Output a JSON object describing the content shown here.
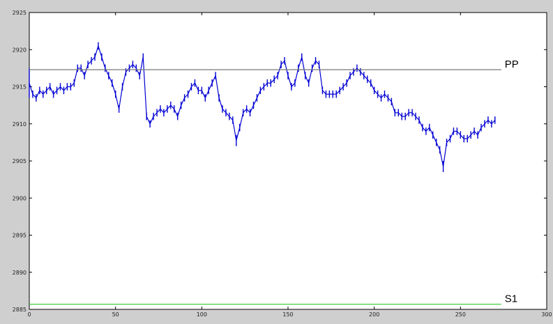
{
  "chart_data": {
    "type": "line",
    "title": "",
    "xlabel": "",
    "ylabel": "",
    "xlim": [
      0,
      300
    ],
    "ylim": [
      2885,
      2925
    ],
    "x_ticks": [
      0,
      50,
      100,
      150,
      200,
      250,
      300
    ],
    "x_tick_labels": [
      "0",
      "50",
      "100",
      "150",
      "200",
      "250",
      "300"
    ],
    "y_ticks": [
      2885,
      2890,
      2895,
      2900,
      2905,
      2910,
      2915,
      2920,
      2925
    ],
    "y_tick_labels": [
      "2885",
      "2890",
      "2895",
      "2900",
      "2905",
      "2910",
      "2915",
      "2920",
      "2925"
    ],
    "grid": false,
    "series": [
      {
        "name": "",
        "style": "high-low bars",
        "color": "#0000d4",
        "x": [
          0,
          2,
          4,
          6,
          8,
          10,
          12,
          14,
          16,
          18,
          20,
          22,
          24,
          26,
          28,
          30,
          32,
          34,
          36,
          38,
          40,
          42,
          44,
          46,
          48,
          50,
          52,
          54,
          56,
          58,
          60,
          62,
          64,
          66,
          68,
          70,
          72,
          74,
          76,
          78,
          80,
          82,
          84,
          86,
          88,
          90,
          92,
          94,
          96,
          98,
          100,
          102,
          104,
          106,
          108,
          110,
          112,
          114,
          116,
          118,
          120,
          122,
          124,
          126,
          128,
          130,
          132,
          134,
          136,
          138,
          140,
          142,
          144,
          146,
          148,
          150,
          152,
          154,
          156,
          158,
          160,
          162,
          164,
          166,
          168,
          170,
          172,
          174,
          176,
          178,
          180,
          182,
          184,
          186,
          188,
          190,
          192,
          194,
          196,
          198,
          200,
          202,
          204,
          206,
          208,
          210,
          212,
          214,
          216,
          218,
          220,
          222,
          224,
          226,
          228,
          230,
          232,
          234,
          236,
          238,
          240,
          242,
          244,
          246,
          248,
          250,
          252,
          254,
          256,
          258,
          260,
          262,
          264,
          266,
          268,
          270
        ],
        "values": [
          2917.5,
          2914.5,
          2914,
          2915,
          2914.5,
          2915,
          2915.5,
          2914.5,
          2915,
          2915.5,
          2915,
          2915.5,
          2915.5,
          2916,
          2918,
          2918,
          2917,
          2918.5,
          2919,
          2919.5,
          2921,
          2919.5,
          2918,
          2917,
          2916,
          2914.5,
          2912.5,
          2915.5,
          2917.5,
          2918,
          2918.5,
          2918,
          2917,
          2919.5,
          2911.5,
          2910.5,
          2911.5,
          2912,
          2912.5,
          2912,
          2912.5,
          2913,
          2912.5,
          2911.5,
          2913,
          2914,
          2914.5,
          2915.5,
          2916,
          2915,
          2915,
          2914,
          2915,
          2916,
          2917,
          2914,
          2912.5,
          2912,
          2911.5,
          2911,
          2908.5,
          2910,
          2912,
          2912.5,
          2912,
          2913,
          2914,
          2915,
          2915.5,
          2916,
          2916,
          2916.5,
          2917,
          2918.5,
          2919,
          2917,
          2915.5,
          2916,
          2918,
          2919.5,
          2917,
          2916,
          2918,
          2919,
          2918.5,
          2915,
          2914.5,
          2914.5,
          2914.5,
          2914.5,
          2915,
          2915.5,
          2916,
          2917,
          2917.5,
          2918,
          2917.5,
          2917,
          2916.5,
          2916,
          2915,
          2914.5,
          2914,
          2914.5,
          2914,
          2913.5,
          2912,
          2912,
          2911.5,
          2911.5,
          2912,
          2912,
          2911.5,
          2911,
          2910,
          2909.5,
          2910,
          2909,
          2908,
          2907,
          2905,
          2908,
          2908.5,
          2909.5,
          2909.5,
          2909,
          2908.5,
          2908.5,
          2909,
          2909.5,
          2909,
          2910,
          2910.5,
          2911,
          2910.5,
          2911
        ],
        "note_ranges_low": [
          2913.5,
          2913.5,
          2913,
          2914,
          2913.5,
          2914,
          2914.5,
          2913.5,
          2914,
          2914.5,
          2914,
          2914.5,
          2914.5,
          2915,
          2917,
          2917,
          2916,
          2917.5,
          2918,
          2918.5,
          2920,
          2918.5,
          2917,
          2916,
          2915,
          2913.5,
          2911.5,
          2914.5,
          2916.5,
          2917,
          2917.5,
          2917,
          2916,
          2918.5,
          2910.5,
          2909.5,
          2910.5,
          2911,
          2911.5,
          2911,
          2911.5,
          2912,
          2911.5,
          2910.5,
          2912,
          2913,
          2913.5,
          2914.5,
          2915,
          2914,
          2914,
          2913,
          2914,
          2915,
          2916,
          2913,
          2911.5,
          2911,
          2910.5,
          2910,
          2907,
          2909,
          2911,
          2911.5,
          2911,
          2912,
          2913,
          2914,
          2914.5,
          2915,
          2915,
          2915.5,
          2916,
          2917.5,
          2918,
          2916,
          2914.5,
          2915,
          2917,
          2918.5,
          2916,
          2915,
          2917,
          2918,
          2917.5,
          2914,
          2913.5,
          2913.5,
          2913.5,
          2913.5,
          2914,
          2914.5,
          2915,
          2916,
          2916.5,
          2917,
          2916.5,
          2916,
          2915.5,
          2915,
          2914,
          2913.5,
          2913,
          2913.5,
          2913,
          2912.5,
          2911,
          2911,
          2910.5,
          2910.5,
          2911,
          2911,
          2910.5,
          2910,
          2909,
          2908.5,
          2909,
          2908,
          2907,
          2906,
          2903.5,
          2907,
          2907.5,
          2908.5,
          2908.5,
          2908,
          2907.5,
          2907.5,
          2908,
          2908.5,
          2908,
          2909,
          2909.5,
          2910,
          2909.5,
          2910
        ]
      }
    ],
    "reference_lines": [
      {
        "label": "PP",
        "y": 2917.3,
        "color": "#777777",
        "x_start": 0,
        "x_end": 270
      },
      {
        "label": "S1",
        "y": 2885.7,
        "color": "#33cc33",
        "x_start": 0,
        "x_end": 270
      }
    ],
    "colors": {
      "figure_background": "#cfcfcf",
      "plot_background": "#ffffff",
      "axis": "#000000"
    }
  }
}
